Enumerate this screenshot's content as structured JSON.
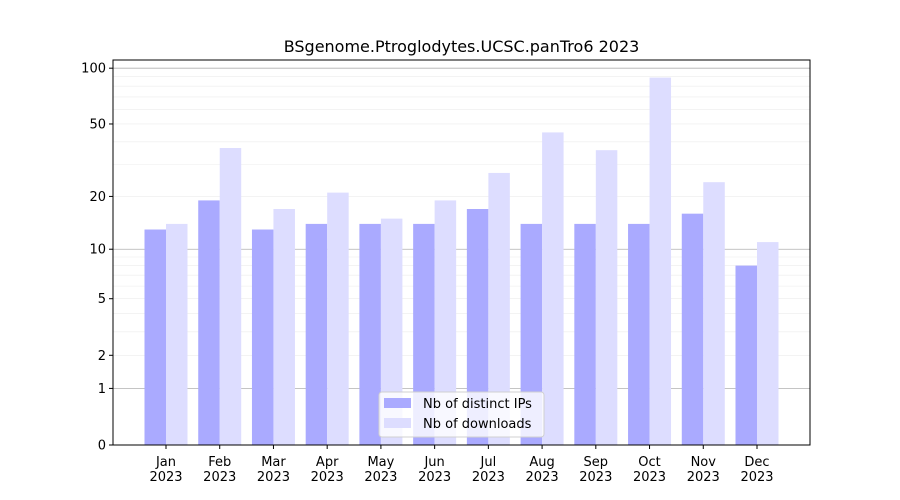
{
  "chart_data": {
    "type": "bar",
    "title": "BSgenome.Ptroglodytes.UCSC.panTro6 2023",
    "xlabel": "",
    "ylabel": "",
    "yscale": "log10(1+y)",
    "ylim": [
      0,
      110
    ],
    "yticks": [
      0,
      1,
      2,
      5,
      10,
      20,
      50,
      100
    ],
    "categories": [
      "Jan\n2023",
      "Feb\n2023",
      "Mar\n2023",
      "Apr\n2023",
      "May\n2023",
      "Jun\n2023",
      "Jul\n2023",
      "Aug\n2023",
      "Sep\n2023",
      "Oct\n2023",
      "Nov\n2023",
      "Dec\n2023"
    ],
    "series": [
      {
        "name": "Nb of distinct IPs",
        "color": "#aaaaff",
        "values": [
          13,
          19,
          13,
          14,
          14,
          14,
          17,
          14,
          14,
          14,
          16,
          8
        ]
      },
      {
        "name": "Nb of downloads",
        "color": "#ddddff",
        "values": [
          14,
          37,
          17,
          21,
          15,
          19,
          27,
          45,
          36,
          89,
          24,
          11
        ]
      }
    ],
    "legend": "bottom-center",
    "grid": true
  }
}
